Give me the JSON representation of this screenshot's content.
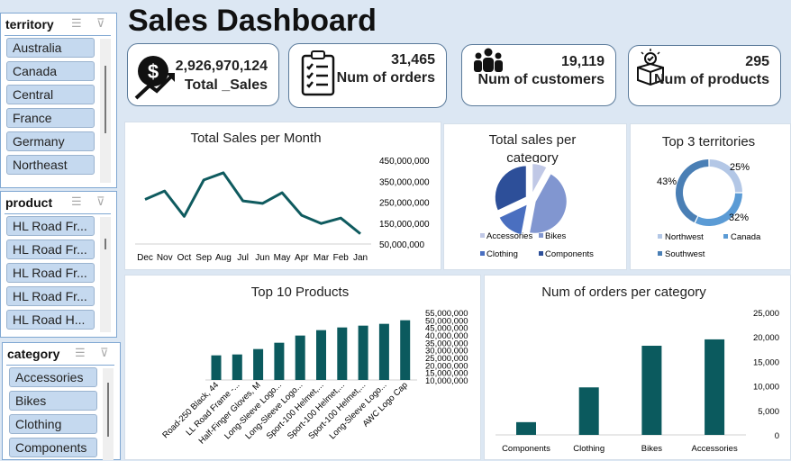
{
  "header": {
    "title": "Sales Dashboard"
  },
  "slicers": {
    "territory": {
      "title": "territory",
      "items": [
        "Australia",
        "Canada",
        "Central",
        "France",
        "Germany",
        "Northeast"
      ]
    },
    "product": {
      "title": "product",
      "items": [
        "HL Road Fr...",
        "HL Road Fr...",
        "HL Road Fr...",
        "HL Road Fr...",
        "HL Road H..."
      ]
    },
    "category": {
      "title": "category",
      "items": [
        "Accessories",
        "Bikes",
        "Clothing",
        "Components"
      ]
    }
  },
  "kpis": [
    {
      "value": "2,926,970,124",
      "label": "Total _Sales",
      "icon": "dollar-growth-icon"
    },
    {
      "value": "31,465",
      "label": "Num of orders",
      "icon": "clipboard-checklist-icon"
    },
    {
      "value": "19,119",
      "label": "Num of customers",
      "icon": "people-icon"
    },
    {
      "value": "295",
      "label": "Num of products",
      "icon": "product-box-icon"
    }
  ],
  "chart_data": [
    {
      "type": "line",
      "title": "Total Sales per Month",
      "color": "#0f5b5f",
      "categories": [
        "Dec",
        "Nov",
        "Oct",
        "Sep",
        "Aug",
        "Jul",
        "Jun",
        "May",
        "Apr",
        "Mar",
        "Feb",
        "Jan"
      ],
      "values": [
        263000000,
        303000000,
        182000000,
        356000000,
        390000000,
        256000000,
        244000000,
        295000000,
        187000000,
        148000000,
        174000000,
        99000000
      ],
      "ylim": [
        50000000,
        450000000
      ],
      "yticks": [
        "450,000,000",
        "350,000,000",
        "250,000,000",
        "150,000,000",
        "50,000,000"
      ],
      "ytick_values": [
        450000000,
        350000000,
        250000000,
        150000000,
        50000000
      ]
    },
    {
      "type": "pie",
      "title": "Total sales per category",
      "categories": [
        "Accessories",
        "Bikes",
        "Clothing",
        "Components"
      ],
      "values": [
        8,
        45,
        15,
        32
      ],
      "colors": [
        "#c0c8e6",
        "#8196d0",
        "#4a6fc0",
        "#2d4f99"
      ],
      "legend": "bottom"
    },
    {
      "type": "pie",
      "title": "Top 3 territories",
      "donut": true,
      "categories": [
        "Northwest",
        "Canada",
        "Southwest"
      ],
      "values": [
        25,
        32,
        43
      ],
      "labels": [
        "25%",
        "32%",
        "43%"
      ],
      "colors": [
        "#b3c7e6",
        "#5b9bd5",
        "#4a7fb5"
      ],
      "legend": "bottom"
    },
    {
      "type": "bar",
      "title": "Top 10 Products",
      "color": "#0b5a5e",
      "categories": [
        "Road-250 Black, 44",
        "LL Road Frame -...",
        "Half-Finger Gloves, M",
        "Long-Sleeve Logo...",
        "Long-Sleeve Logo...",
        "Sport-100 Helmet,...",
        "Sport-100 Helmet,...",
        "Sport-100 Helmet,...",
        "Long-Sleeve Logo...",
        "AWC Logo Cap"
      ],
      "values": [
        26400000,
        27000000,
        30600000,
        34800000,
        39600000,
        43200000,
        45000000,
        46200000,
        47400000,
        49800000
      ],
      "ylim": [
        10000000,
        55000000
      ],
      "yticks": [
        "55,000,000",
        "50,000,000",
        "45,000,000",
        "40,000,000",
        "35,000,000",
        "30,000,000",
        "25,000,000",
        "20,000,000",
        "15,000,000",
        "10,000,000"
      ],
      "ytick_values": [
        55000000,
        50000000,
        45000000,
        40000000,
        35000000,
        30000000,
        25000000,
        20000000,
        15000000,
        10000000
      ]
    },
    {
      "type": "bar",
      "title": "Num of orders per category",
      "color": "#0b5a5e",
      "categories": [
        "Components",
        "Clothing",
        "Bikes",
        "Accessories"
      ],
      "values": [
        2600,
        9700,
        18200,
        19500
      ],
      "ylim": [
        0,
        25000
      ],
      "yticks": [
        "25,000",
        "20,000",
        "15,000",
        "10,000",
        "5,000",
        "0"
      ],
      "ytick_values": [
        25000,
        20000,
        15000,
        10000,
        5000,
        0
      ]
    }
  ]
}
